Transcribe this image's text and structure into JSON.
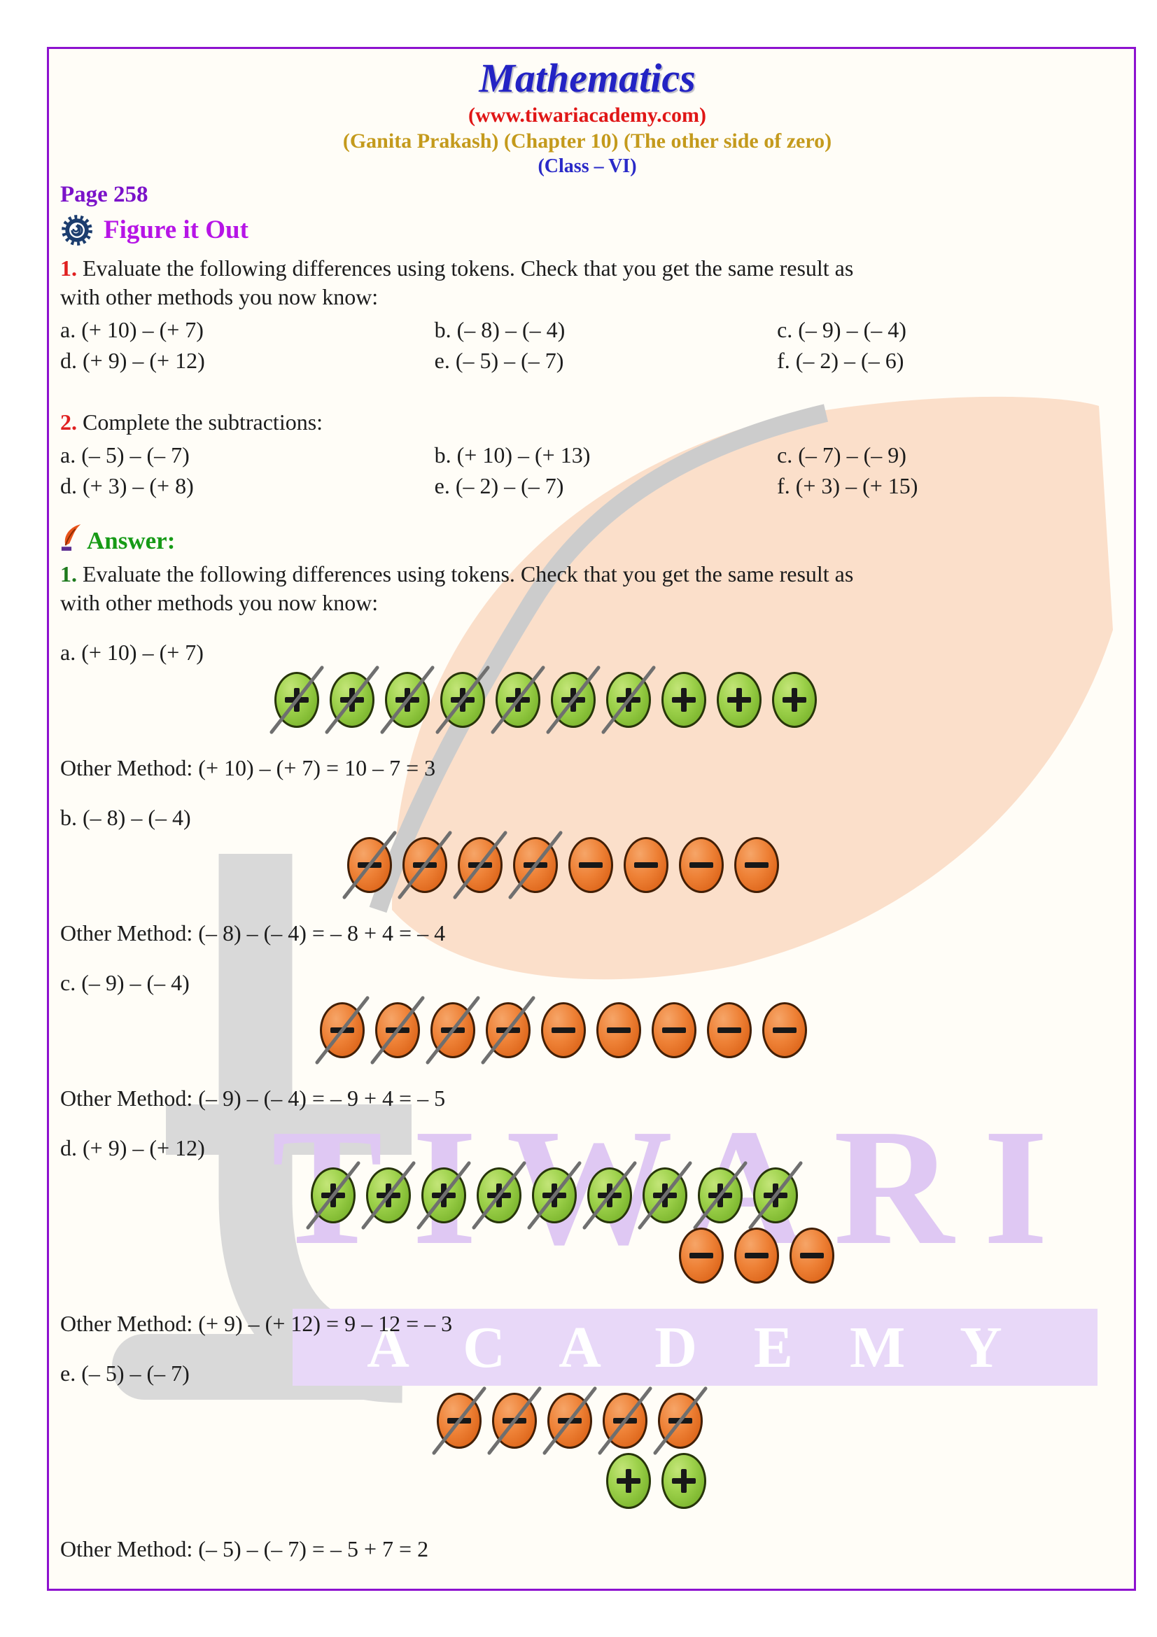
{
  "header": {
    "title": "Mathematics",
    "website": "(www.tiwariacademy.com)",
    "book_line": "(Ganita Prakash) (Chapter 10) (The other side of zero)",
    "class_line": "(Class – VI)"
  },
  "page_label": "Page 258",
  "section": {
    "title": "Figure it Out"
  },
  "q1": {
    "number": "1.",
    "line1": "Evaluate the following differences using tokens. Check that you get the same result as",
    "line2": "with other methods you now know:",
    "items": [
      "a. (+ 10) – (+ 7)",
      "b. (– 8) – (– 4)",
      "c. (– 9) – (– 4)",
      "d. (+ 9) – (+ 12)",
      "e. (– 5) – (– 7)",
      "f. (– 2) – (– 6)"
    ]
  },
  "q2": {
    "number": "2.",
    "text": "Complete the subtractions:",
    "items": [
      "a. (– 5) – (– 7)",
      "b. (+ 10) – (+ 13)",
      "c. (– 7) – (– 9)",
      "d. (+ 3) – (+ 8)",
      "e. (– 2) – (– 7)",
      "f. (+ 3) – (+ 15)"
    ]
  },
  "answer_label": "Answer:",
  "answer_q1": {
    "number": "1.",
    "line1": "Evaluate the following differences using tokens. Check that you get the same result as",
    "line2": "with other methods you now know:"
  },
  "answers": [
    {
      "label": "a. (+ 10) – (+ 7)",
      "rows": [
        {
          "color": "green",
          "sign": "+",
          "count": 10,
          "crossed": 7,
          "indent": 306
        }
      ],
      "other_method": "Other Method: (+ 10) – (+ 7) = 10 – 7 = 3"
    },
    {
      "label": "b. (– 8) – (– 4)",
      "rows": [
        {
          "color": "orange",
          "sign": "−",
          "count": 8,
          "crossed": 4,
          "indent": 410
        }
      ],
      "other_method": "Other Method: (– 8) – (– 4) = – 8 + 4 = – 4"
    },
    {
      "label": "c. (– 9) – (– 4)",
      "rows": [
        {
          "color": "orange",
          "sign": "−",
          "count": 9,
          "crossed": 4,
          "indent": 371
        }
      ],
      "other_method": "Other Method: (– 9) – (– 4) = – 9 + 4 = – 5"
    },
    {
      "label": "d. (+ 9) – (+ 12)",
      "rows": [
        {
          "color": "green",
          "sign": "+",
          "count": 9,
          "crossed": 9,
          "indent": 358
        },
        {
          "color": "orange",
          "sign": "−",
          "count": 3,
          "crossed": 0,
          "indent": 884
        }
      ],
      "other_method": "Other Method: (+ 9) – (+ 12) = 9 – 12 = – 3"
    },
    {
      "label": "e. (– 5) – (– 7)",
      "rows": [
        {
          "color": "orange",
          "sign": "−",
          "count": 5,
          "crossed": 5,
          "indent": 538
        },
        {
          "color": "green",
          "sign": "+",
          "count": 2,
          "crossed": 0,
          "indent": 780
        }
      ],
      "other_method": "Other Method: (– 5) – (– 7) = – 5 + 7 = 2"
    }
  ],
  "watermarks": {
    "tiwari": "TIWARI",
    "academy": "A C A D E M Y"
  },
  "colors": {
    "frame_purple": "#8d12cf",
    "title_blue": "#2323c4",
    "url_red": "#e01616",
    "book_gold": "#c49a1c",
    "class_blue": "#2a2ac8",
    "page_purple": "#7b12c9",
    "figure_magenta": "#b614e6",
    "answer_green": "#169a16",
    "token_green": "#8cc63e",
    "token_orange": "#e8762a",
    "strike_gray": "#6f6f6f",
    "watermark_peach": "#fbdfca",
    "watermark_lilac": "#e8d8f8"
  }
}
